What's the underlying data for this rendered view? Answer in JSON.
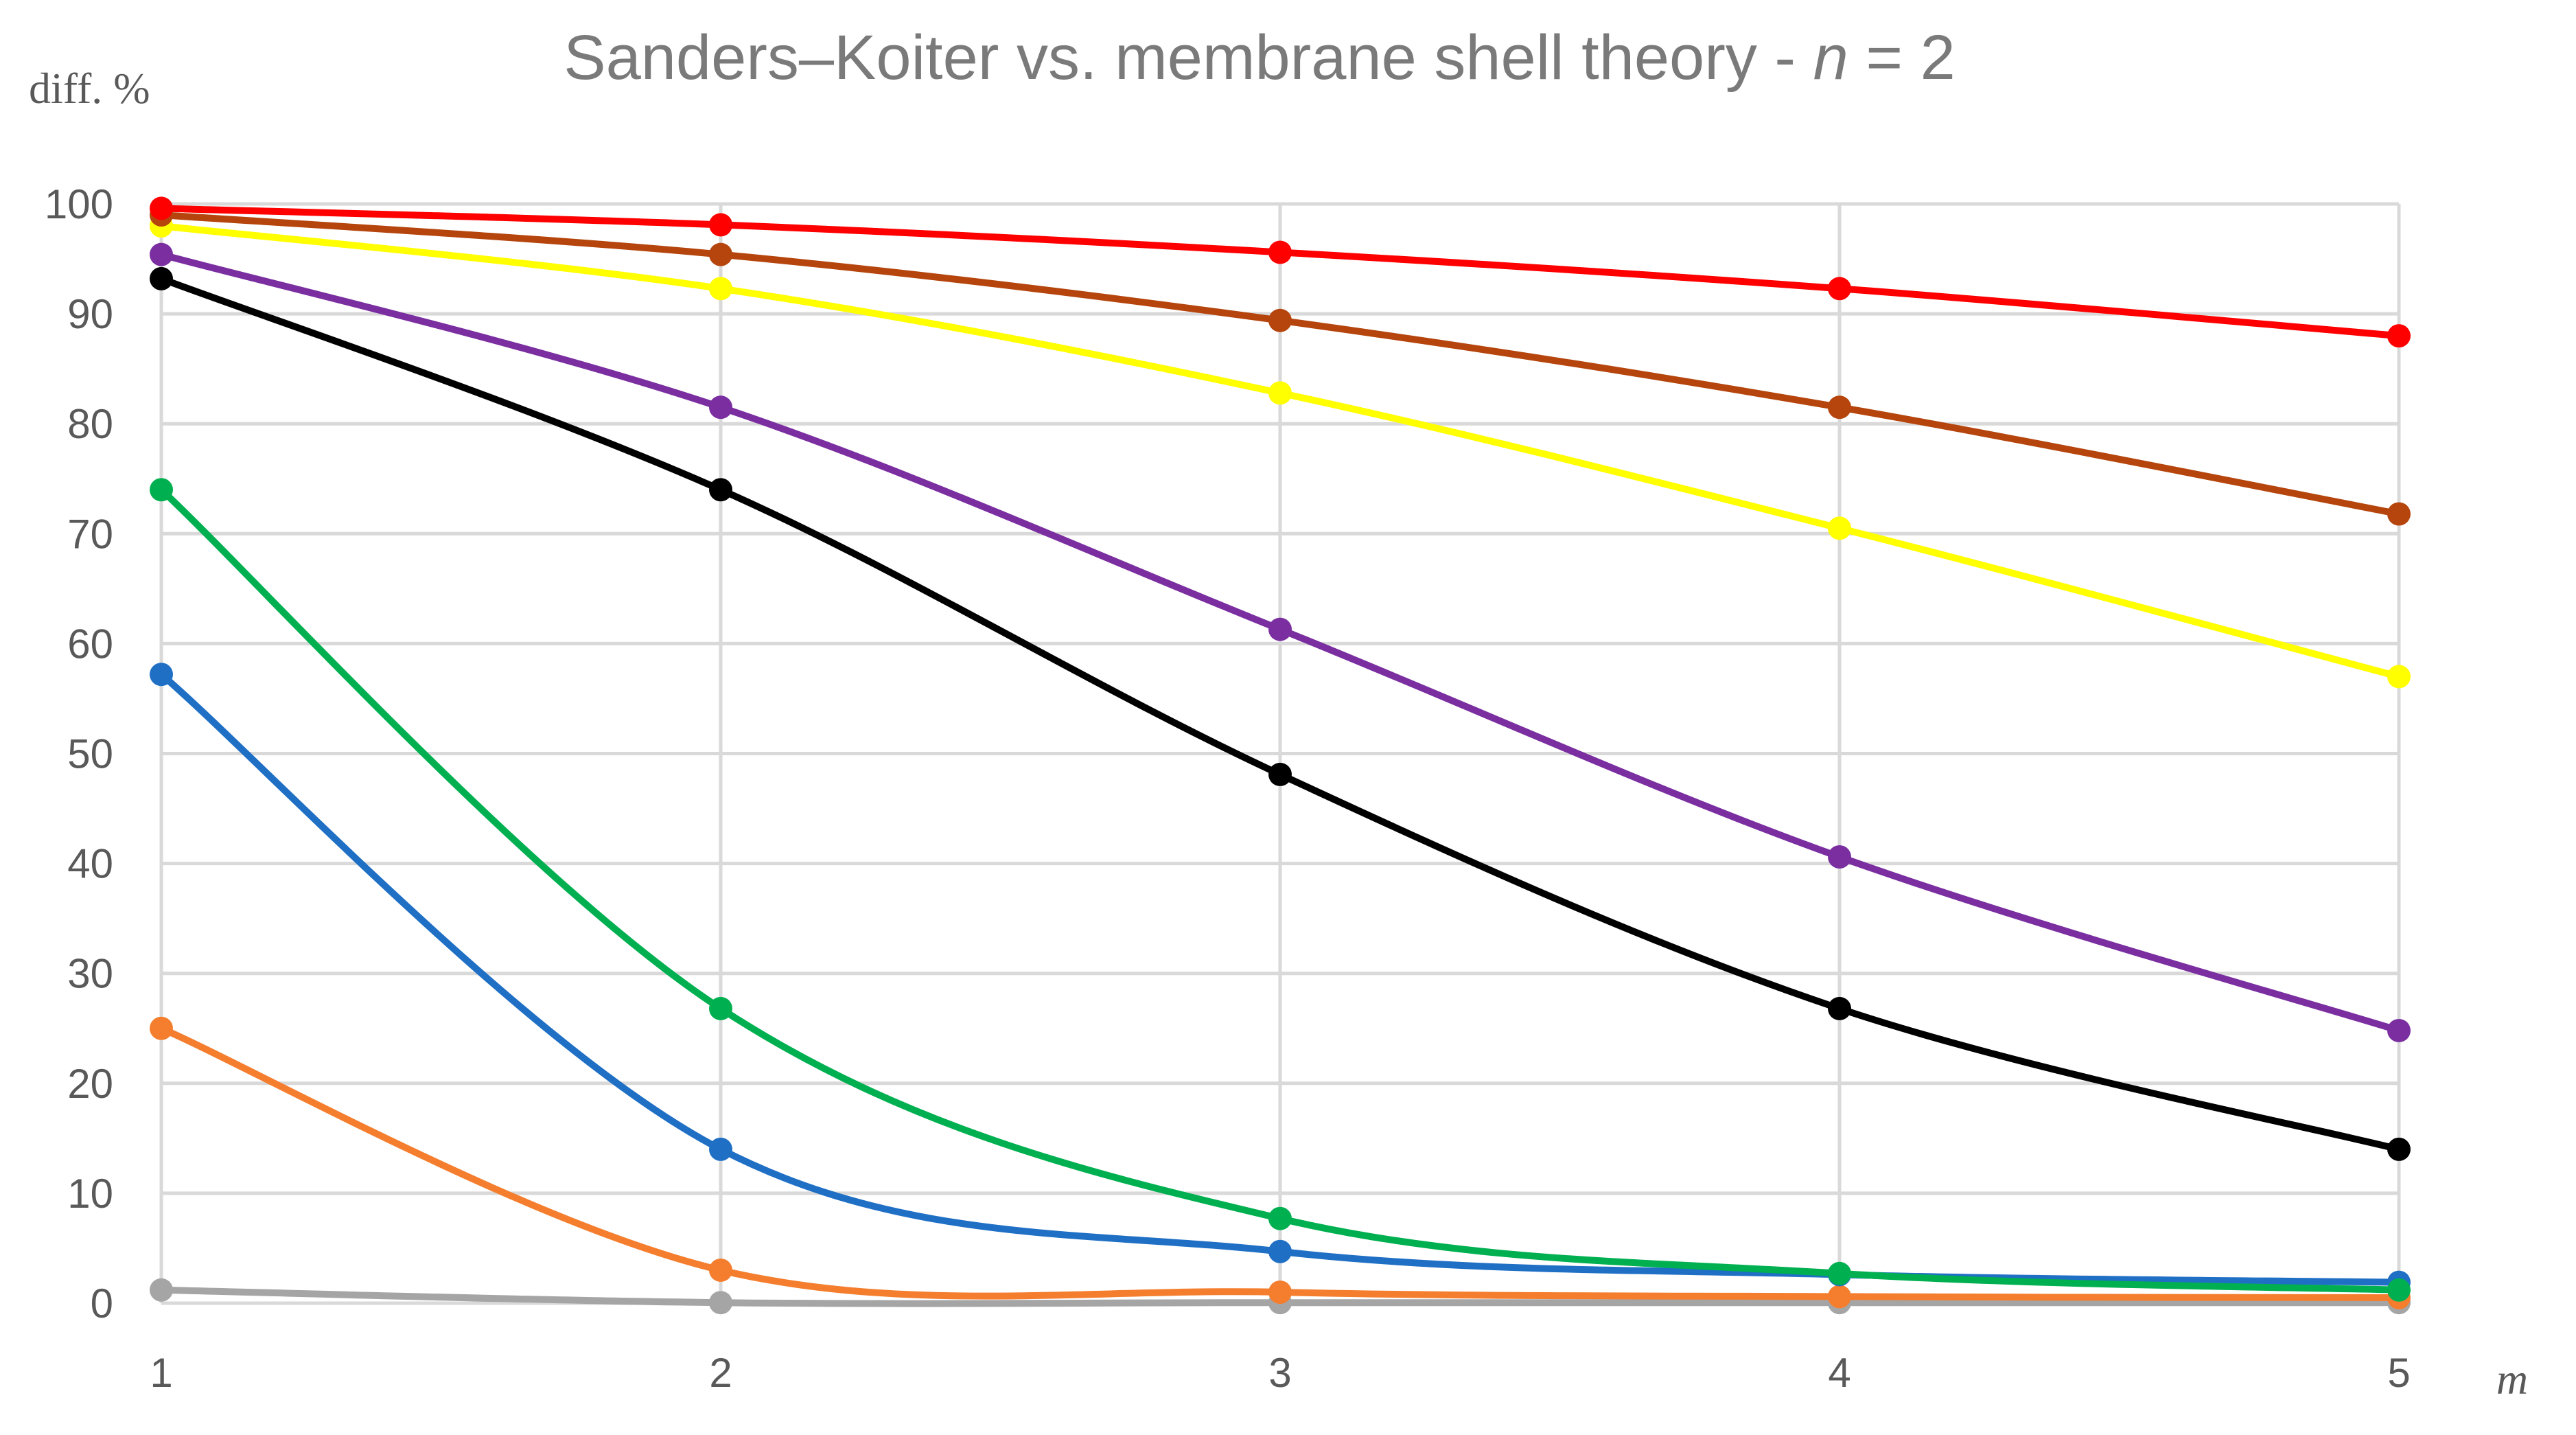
{
  "chart_data": {
    "type": "line",
    "title": {
      "prefix": "Sanders–Koiter vs. membrane shell theory - ",
      "variable": "n",
      "suffix": " = 2"
    },
    "ylabel": "diff. %",
    "xlabel": "m",
    "x": [
      1,
      2,
      3,
      4,
      5
    ],
    "xticks": [
      "1",
      "2",
      "3",
      "4",
      "5"
    ],
    "xlim": [
      1,
      5
    ],
    "ylim": [
      0,
      100
    ],
    "yticks": [
      "0",
      "10",
      "20",
      "30",
      "40",
      "50",
      "60",
      "70",
      "80",
      "90",
      "100"
    ],
    "grid": true,
    "legend": "none",
    "series": [
      {
        "name": "gray",
        "color": "#a5a5a5",
        "values": [
          1.2,
          0.05,
          0.05,
          0.05,
          0.05
        ]
      },
      {
        "name": "orange",
        "color": "#f47e2e",
        "values": [
          25.0,
          3.0,
          1.0,
          0.6,
          0.5
        ]
      },
      {
        "name": "blue",
        "color": "#1f6fc5",
        "values": [
          57.2,
          14.0,
          4.7,
          2.6,
          1.9
        ]
      },
      {
        "name": "green",
        "color": "#00b050",
        "values": [
          74.0,
          26.8,
          7.7,
          2.7,
          1.2
        ]
      },
      {
        "name": "black",
        "color": "#000000",
        "values": [
          93.2,
          74.0,
          48.1,
          26.8,
          14.0
        ]
      },
      {
        "name": "purple",
        "color": "#7a2ea0",
        "values": [
          95.4,
          81.5,
          61.3,
          40.6,
          24.8
        ]
      },
      {
        "name": "yellow",
        "color": "#ffff00",
        "values": [
          98.0,
          92.3,
          82.8,
          70.5,
          57.0
        ]
      },
      {
        "name": "brown",
        "color": "#b5450d",
        "values": [
          99.0,
          95.4,
          89.4,
          81.5,
          71.8
        ]
      },
      {
        "name": "red",
        "color": "#ff0000",
        "values": [
          99.6,
          98.1,
          95.6,
          92.3,
          88.0
        ]
      }
    ]
  }
}
